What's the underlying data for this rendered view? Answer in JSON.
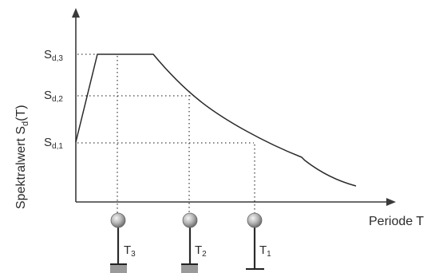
{
  "diagram": {
    "y_axis_label": {
      "main": "Spektralwert S",
      "sub": "d",
      "suffix": "(T)"
    },
    "x_axis_label": "Periode T",
    "levels": [
      {
        "main": "S",
        "sub": "d,3"
      },
      {
        "main": "S",
        "sub": "d,2"
      },
      {
        "main": "S",
        "sub": "d,1"
      }
    ],
    "periods": [
      {
        "main": "T",
        "sub": "3"
      },
      {
        "main": "T",
        "sub": "2"
      },
      {
        "main": "T",
        "sub": "1"
      }
    ]
  }
}
